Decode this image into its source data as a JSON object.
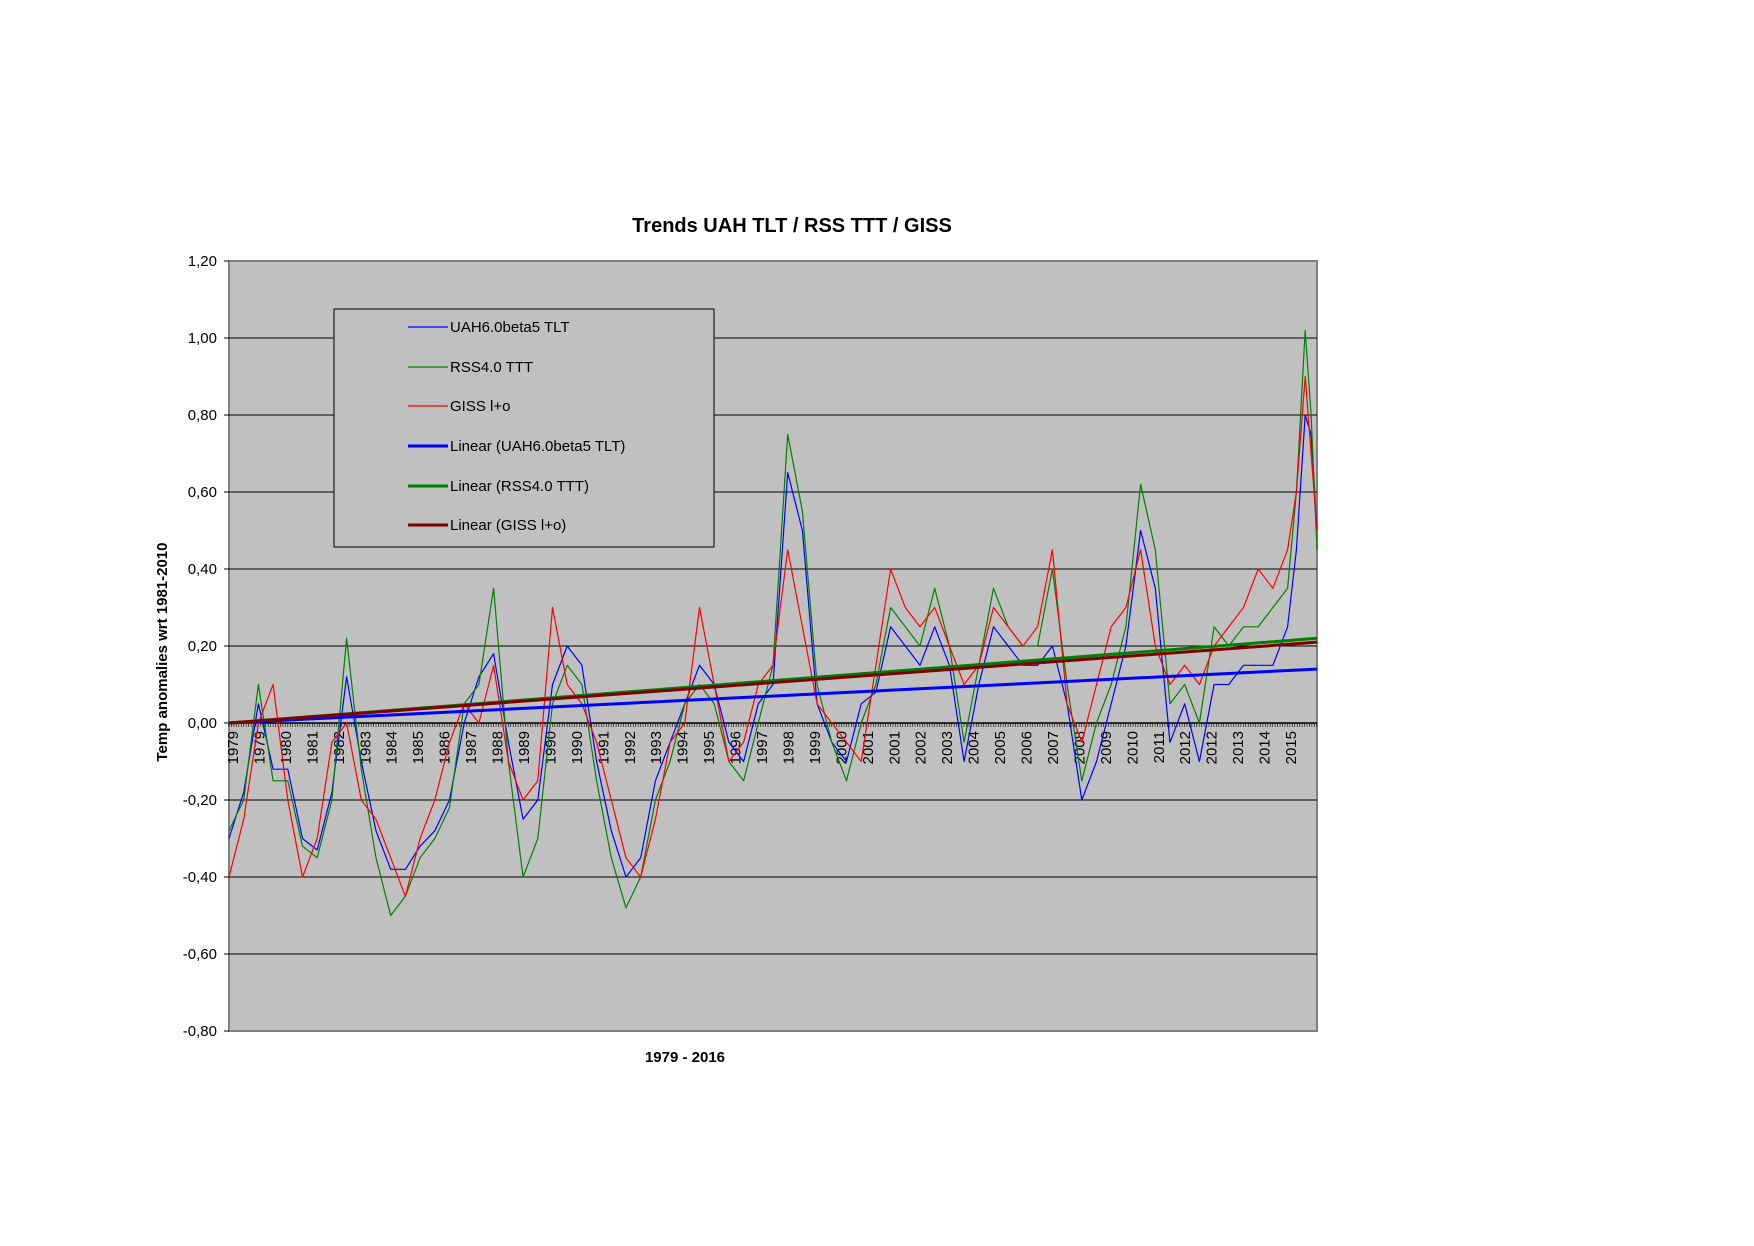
{
  "chart_data": {
    "type": "line",
    "title": "Trends UAH TLT / RSS TTT / GISS",
    "xlabel": "1979 - 2016",
    "ylabel": "Temp anomalies wrt 1981-2010",
    "ylim": [
      -0.8,
      1.2
    ],
    "yticks": [
      "1,20",
      "1,00",
      "0,80",
      "0,60",
      "0,40",
      "0,20",
      "0,00",
      "-0,20",
      "-0,40",
      "-0,60",
      "-0,80"
    ],
    "xlim": [
      1979.0,
      2016.0
    ],
    "xticks": [
      "1979",
      "1979",
      "1980",
      "1981",
      "1982",
      "1983",
      "1984",
      "1985",
      "1986",
      "1987",
      "1988",
      "1989",
      "1990",
      "1990",
      "1991",
      "1992",
      "1993",
      "1994",
      "1995",
      "1996",
      "1997",
      "1998",
      "1999",
      "2000",
      "2001",
      "2001",
      "2002",
      "2003",
      "2004",
      "2005",
      "2006",
      "2007",
      "2008",
      "2009",
      "2010",
      "2011",
      "2012",
      "2012",
      "2013",
      "2014",
      "2015"
    ],
    "grid": true,
    "legend_position": "top-left",
    "plot_background": "#c0c0c0",
    "series": [
      {
        "name": "UAH6.0beta5 TLT",
        "color": "#0000ff",
        "kind": "data",
        "x": [
          1979.0,
          1979.5,
          1980.0,
          1980.5,
          1981.0,
          1981.5,
          1982.0,
          1982.5,
          1983.0,
          1983.5,
          1984.0,
          1984.5,
          1985.0,
          1985.5,
          1986.0,
          1986.5,
          1987.0,
          1987.5,
          1988.0,
          1988.5,
          1989.0,
          1989.5,
          1990.0,
          1990.5,
          1991.0,
          1991.5,
          1992.0,
          1992.5,
          1993.0,
          1993.5,
          1994.0,
          1994.5,
          1995.0,
          1995.5,
          1996.0,
          1996.5,
          1997.0,
          1997.5,
          1998.0,
          1998.5,
          1999.0,
          1999.5,
          2000.0,
          2000.5,
          2001.0,
          2001.5,
          2002.0,
          2002.5,
          2003.0,
          2003.5,
          2004.0,
          2004.5,
          2005.0,
          2005.5,
          2006.0,
          2006.5,
          2007.0,
          2007.5,
          2008.0,
          2008.5,
          2009.0,
          2009.5,
          2010.0,
          2010.5,
          2011.0,
          2011.5,
          2012.0,
          2012.5,
          2013.0,
          2013.5,
          2014.0,
          2014.5,
          2015.0,
          2015.3,
          2015.6,
          2015.8,
          2016.0
        ],
        "values": [
          -0.3,
          -0.18,
          0.05,
          -0.12,
          -0.12,
          -0.3,
          -0.33,
          -0.18,
          0.12,
          -0.1,
          -0.28,
          -0.38,
          -0.38,
          -0.32,
          -0.28,
          -0.2,
          0.0,
          0.12,
          0.18,
          -0.05,
          -0.25,
          -0.2,
          0.1,
          0.2,
          0.15,
          -0.1,
          -0.28,
          -0.4,
          -0.35,
          -0.15,
          -0.05,
          0.05,
          0.15,
          0.1,
          -0.05,
          -0.1,
          0.05,
          0.1,
          0.65,
          0.5,
          0.05,
          -0.05,
          -0.1,
          0.05,
          0.08,
          0.25,
          0.2,
          0.15,
          0.25,
          0.15,
          -0.1,
          0.1,
          0.25,
          0.2,
          0.15,
          0.15,
          0.2,
          0.05,
          -0.2,
          -0.1,
          0.05,
          0.2,
          0.5,
          0.35,
          -0.05,
          0.05,
          -0.1,
          0.1,
          0.1,
          0.15,
          0.15,
          0.15,
          0.25,
          0.45,
          0.8,
          0.75,
          0.5
        ]
      },
      {
        "name": "RSS4.0 TTT",
        "color": "#008000",
        "kind": "data",
        "x": [
          1979.0,
          1979.5,
          1980.0,
          1980.5,
          1981.0,
          1981.5,
          1982.0,
          1982.5,
          1983.0,
          1983.5,
          1984.0,
          1984.5,
          1985.0,
          1985.5,
          1986.0,
          1986.5,
          1987.0,
          1987.5,
          1988.0,
          1988.5,
          1989.0,
          1989.5,
          1990.0,
          1990.5,
          1991.0,
          1991.5,
          1992.0,
          1992.5,
          1993.0,
          1993.5,
          1994.0,
          1994.5,
          1995.0,
          1995.5,
          1996.0,
          1996.5,
          1997.0,
          1997.5,
          1998.0,
          1998.5,
          1999.0,
          1999.5,
          2000.0,
          2000.5,
          2001.0,
          2001.5,
          2002.0,
          2002.5,
          2003.0,
          2003.5,
          2004.0,
          2004.5,
          2005.0,
          2005.5,
          2006.0,
          2006.5,
          2007.0,
          2007.5,
          2008.0,
          2008.5,
          2009.0,
          2009.5,
          2010.0,
          2010.5,
          2011.0,
          2011.5,
          2012.0,
          2012.5,
          2013.0,
          2013.5,
          2014.0,
          2014.5,
          2015.0,
          2015.3,
          2015.6,
          2015.8,
          2016.0
        ],
        "values": [
          -0.28,
          -0.2,
          0.1,
          -0.15,
          -0.15,
          -0.32,
          -0.35,
          -0.2,
          0.22,
          -0.12,
          -0.35,
          -0.5,
          -0.45,
          -0.35,
          -0.3,
          -0.22,
          0.05,
          0.1,
          0.35,
          -0.1,
          -0.4,
          -0.3,
          0.05,
          0.15,
          0.1,
          -0.15,
          -0.35,
          -0.48,
          -0.4,
          -0.2,
          -0.1,
          0.05,
          0.1,
          0.05,
          -0.1,
          -0.15,
          0.0,
          0.15,
          0.75,
          0.55,
          0.1,
          -0.05,
          -0.15,
          0.0,
          0.1,
          0.3,
          0.25,
          0.2,
          0.35,
          0.2,
          -0.05,
          0.15,
          0.35,
          0.25,
          0.2,
          0.2,
          0.4,
          0.1,
          -0.15,
          0.0,
          0.1,
          0.25,
          0.62,
          0.45,
          0.05,
          0.1,
          0.0,
          0.25,
          0.2,
          0.25,
          0.25,
          0.3,
          0.35,
          0.6,
          1.02,
          0.8,
          0.45
        ]
      },
      {
        "name": "GISS l+o",
        "color": "#ff0000",
        "kind": "data",
        "x": [
          1979.0,
          1979.5,
          1980.0,
          1980.5,
          1981.0,
          1981.5,
          1982.0,
          1982.5,
          1983.0,
          1983.5,
          1984.0,
          1984.5,
          1985.0,
          1985.5,
          1986.0,
          1986.5,
          1987.0,
          1987.5,
          1988.0,
          1988.5,
          1989.0,
          1989.5,
          1990.0,
          1990.5,
          1991.0,
          1991.5,
          1992.0,
          1992.5,
          1993.0,
          1993.5,
          1994.0,
          1994.5,
          1995.0,
          1995.5,
          1996.0,
          1996.5,
          1997.0,
          1997.5,
          1998.0,
          1998.5,
          1999.0,
          1999.5,
          2000.0,
          2000.5,
          2001.0,
          2001.5,
          2002.0,
          2002.5,
          2003.0,
          2003.5,
          2004.0,
          2004.5,
          2005.0,
          2005.5,
          2006.0,
          2006.5,
          2007.0,
          2007.5,
          2008.0,
          2008.5,
          2009.0,
          2009.5,
          2010.0,
          2010.5,
          2011.0,
          2011.5,
          2012.0,
          2012.5,
          2013.0,
          2013.5,
          2014.0,
          2014.5,
          2015.0,
          2015.3,
          2015.6,
          2015.8,
          2016.0
        ],
        "values": [
          -0.4,
          -0.25,
          0.0,
          0.1,
          -0.2,
          -0.4,
          -0.3,
          -0.05,
          0.0,
          -0.2,
          -0.25,
          -0.35,
          -0.45,
          -0.3,
          -0.2,
          -0.05,
          0.05,
          0.0,
          0.15,
          -0.1,
          -0.2,
          -0.15,
          0.3,
          0.1,
          0.05,
          -0.05,
          -0.2,
          -0.35,
          -0.4,
          -0.25,
          -0.05,
          0.0,
          0.3,
          0.1,
          -0.1,
          -0.05,
          0.1,
          0.15,
          0.45,
          0.25,
          0.05,
          0.0,
          -0.05,
          -0.1,
          0.15,
          0.4,
          0.3,
          0.25,
          0.3,
          0.2,
          0.1,
          0.15,
          0.3,
          0.25,
          0.2,
          0.25,
          0.45,
          0.05,
          -0.05,
          0.1,
          0.25,
          0.3,
          0.45,
          0.2,
          0.1,
          0.15,
          0.1,
          0.2,
          0.25,
          0.3,
          0.4,
          0.35,
          0.45,
          0.6,
          0.9,
          0.7,
          0.5
        ]
      },
      {
        "name": "Linear (UAH6.0beta5 TLT)",
        "color": "#0000ff",
        "kind": "trend",
        "x": [
          1979.0,
          2016.0
        ],
        "values": [
          0.0,
          0.14
        ]
      },
      {
        "name": "Linear (RSS4.0 TTT)",
        "color": "#008000",
        "kind": "trend",
        "x": [
          1979.0,
          2016.0
        ],
        "values": [
          0.0,
          0.22
        ]
      },
      {
        "name": "Linear (GISS l+o)",
        "color": "#800000",
        "kind": "trend",
        "x": [
          1979.0,
          2016.0
        ],
        "values": [
          0.0,
          0.21
        ]
      }
    ]
  }
}
